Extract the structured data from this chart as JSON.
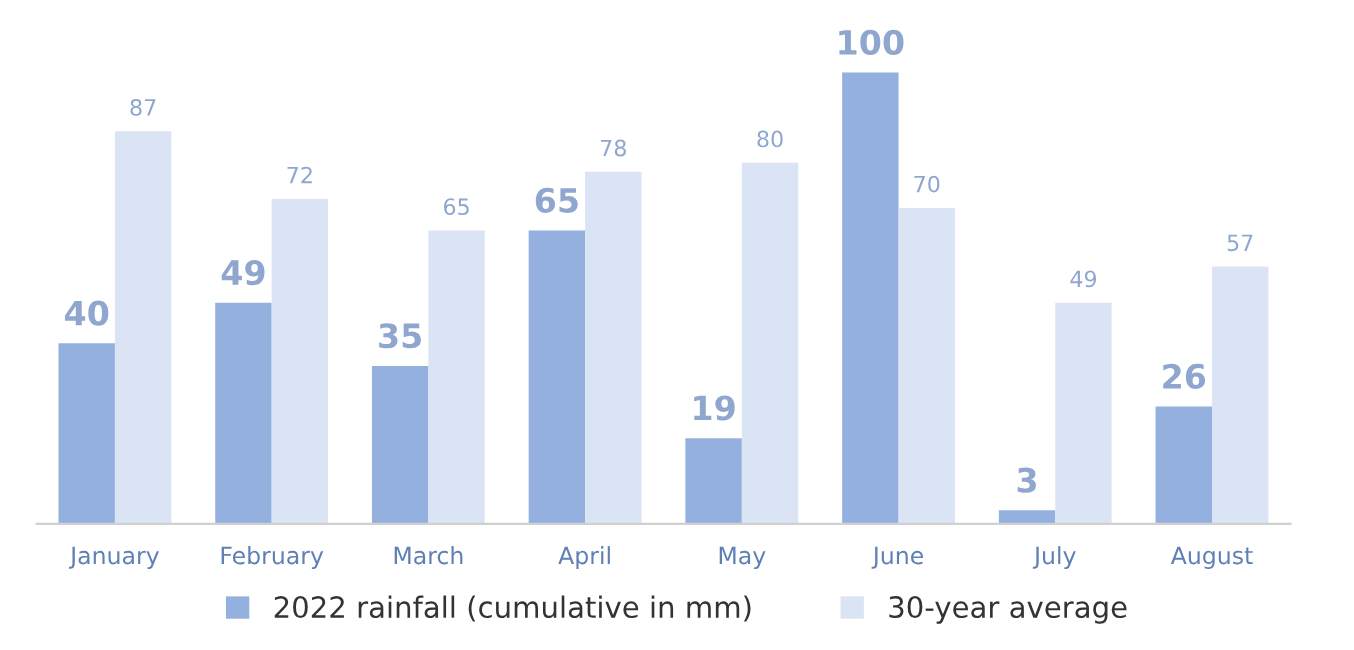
{
  "chart_data": {
    "type": "bar",
    "categories": [
      "January",
      "February",
      "March",
      "April",
      "May",
      "June",
      "July",
      "August"
    ],
    "series": [
      {
        "name": "2022 rainfall (cumulative in mm)",
        "color": "#94b0de",
        "values": [
          40,
          49,
          35,
          65,
          19,
          100,
          3,
          26
        ]
      },
      {
        "name": "30-year average",
        "color": "#dbe4f4",
        "values": [
          87,
          72,
          65,
          78,
          80,
          70,
          49,
          57
        ]
      }
    ],
    "data_labels": true,
    "legend": "bottom",
    "grid": false
  }
}
